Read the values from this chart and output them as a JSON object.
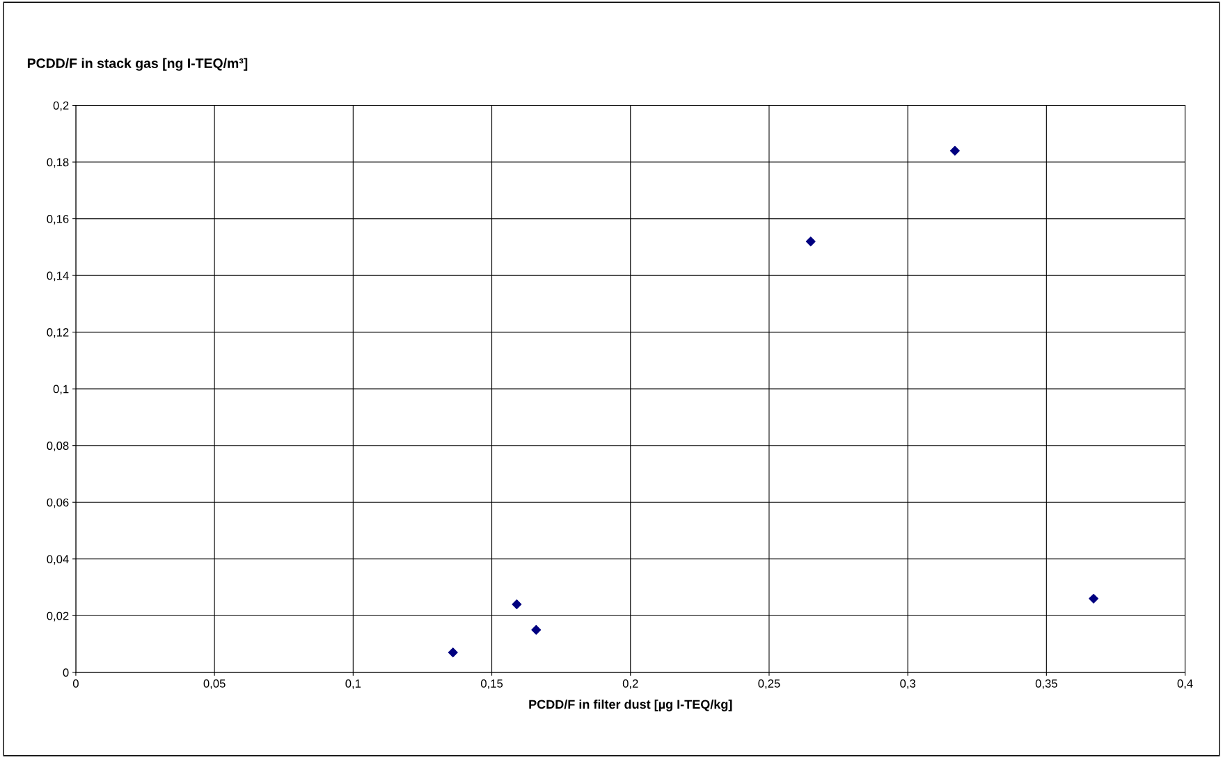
{
  "chart_data": {
    "type": "scatter",
    "ylabel": "PCDD/F in stack gas [ng I-TEQ/m³]",
    "xlabel": "PCDD/F in filter dust [µg I-TEQ/kg]",
    "x": [
      0.136,
      0.159,
      0.166,
      0.265,
      0.317,
      0.367
    ],
    "series": [
      {
        "color": "#000080",
        "values": [
          0.007,
          0.024,
          0.015,
          0.152,
          0.184,
          0.026
        ]
      }
    ],
    "marker": "diamond",
    "grid": true,
    "legend": false,
    "xlim": [
      0,
      0.4
    ],
    "ylim": [
      0,
      0.2
    ],
    "xticks": [
      0,
      {
        "value": 0.05,
        "label": "0,05"
      },
      {
        "value": 0.1,
        "label": "0,1"
      },
      {
        "value": 0.15,
        "label": "0,15"
      },
      {
        "value": 0.2,
        "label": "0,2"
      },
      {
        "value": 0.25,
        "label": "0,25"
      },
      {
        "value": 0.3,
        "label": "0,3"
      },
      {
        "value": 0.35,
        "label": "0,35"
      },
      {
        "value": 0.4,
        "label": "0,4"
      }
    ],
    "yticks": [
      0,
      {
        "value": 0.02,
        "label": "0,02"
      },
      {
        "value": 0.04,
        "label": "0,04"
      },
      {
        "value": 0.06,
        "label": "0,06"
      },
      {
        "value": 0.08,
        "label": "0,08"
      },
      {
        "value": 0.1,
        "label": "0,1"
      },
      {
        "value": 0.12,
        "label": "0,12"
      },
      {
        "value": 0.14,
        "label": "0,14"
      },
      {
        "value": 0.16,
        "label": "0,16"
      },
      {
        "value": 0.18,
        "label": "0,18"
      },
      {
        "value": 0.2,
        "label": "0,2"
      }
    ]
  }
}
